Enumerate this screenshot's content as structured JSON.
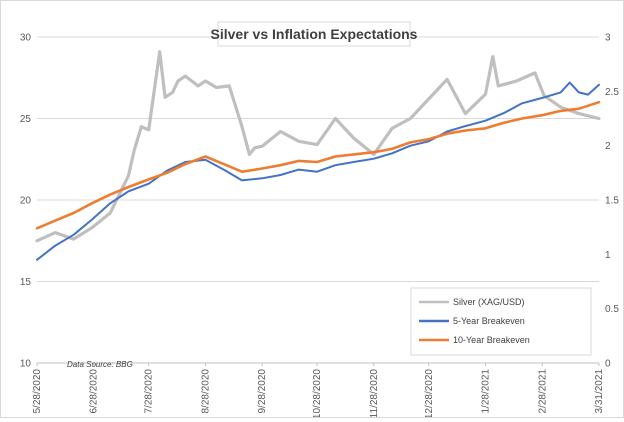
{
  "chart_data": {
    "type": "line",
    "title": "Silver vs Inflation Expectations",
    "source": "Data Source: BBG",
    "x_ticks": [
      "5/28/2020",
      "6/28/2020",
      "7/28/2020",
      "8/28/2020",
      "9/28/2020",
      "10/28/2020",
      "11/28/2020",
      "12/28/2020",
      "1/28/2021",
      "2/28/2021",
      "3/31/2021"
    ],
    "y_left": {
      "min": 10,
      "max": 30,
      "ticks": [
        "10",
        "15",
        "20",
        "25",
        "30"
      ]
    },
    "y_right": {
      "min": 0,
      "max": 3,
      "ticks": [
        "0",
        "0.5",
        "1",
        "1.5",
        "2",
        "2.5",
        "3"
      ]
    },
    "series": [
      {
        "name": "Silver (XAG/USD)",
        "axis": "left",
        "color": "#bfbfbf",
        "x": [
          "5/28/2020",
          "6/7/2020",
          "6/17/2020",
          "6/27/2020",
          "7/7/2020",
          "7/17/2020",
          "7/20/2020",
          "7/24/2020",
          "7/28/2020",
          "8/3/2020",
          "8/6/2020",
          "8/10/2020",
          "8/13/2020",
          "8/17/2020",
          "8/24/2020",
          "8/28/2020",
          "9/3/2020",
          "9/10/2020",
          "9/17/2020",
          "9/21/2020",
          "9/24/2020",
          "9/28/2020",
          "10/8/2020",
          "10/18/2020",
          "10/28/2020",
          "11/7/2020",
          "11/17/2020",
          "11/28/2020",
          "12/8/2020",
          "12/18/2020",
          "12/28/2020",
          "1/7/2021",
          "1/17/2021",
          "1/28/2021",
          "2/1/2021",
          "2/4/2021",
          "2/14/2021",
          "2/24/2021",
          "3/1/2021",
          "3/10/2021",
          "3/20/2021",
          "3/31/2021"
        ],
        "values": [
          17.5,
          18.0,
          17.6,
          18.3,
          19.2,
          21.5,
          23.0,
          24.5,
          24.3,
          29.1,
          26.3,
          26.6,
          27.3,
          27.6,
          27.0,
          27.3,
          26.9,
          27.0,
          24.5,
          22.8,
          23.2,
          23.3,
          24.2,
          23.6,
          23.4,
          25.0,
          23.8,
          22.8,
          24.4,
          25.0,
          26.2,
          27.4,
          25.3,
          26.5,
          28.8,
          27.0,
          27.3,
          27.8,
          26.4,
          25.7,
          25.3,
          25.0
        ]
      },
      {
        "name": "5-Year Breakeven",
        "axis": "right",
        "color": "#4472c4",
        "x": [
          "5/28/2020",
          "6/7/2020",
          "6/17/2020",
          "6/27/2020",
          "7/7/2020",
          "7/17/2020",
          "7/28/2020",
          "8/7/2020",
          "8/17/2020",
          "8/28/2020",
          "9/7/2020",
          "9/17/2020",
          "9/28/2020",
          "10/8/2020",
          "10/18/2020",
          "10/28/2020",
          "11/7/2020",
          "11/17/2020",
          "11/28/2020",
          "12/8/2020",
          "12/18/2020",
          "12/28/2020",
          "1/7/2021",
          "1/17/2021",
          "1/28/2021",
          "2/7/2021",
          "2/17/2021",
          "2/28/2021",
          "3/10/2021",
          "3/15/2021",
          "3/20/2021",
          "3/25/2021",
          "3/31/2021"
        ],
        "values": [
          0.95,
          1.08,
          1.18,
          1.32,
          1.47,
          1.58,
          1.65,
          1.77,
          1.85,
          1.87,
          1.78,
          1.68,
          1.7,
          1.73,
          1.78,
          1.76,
          1.82,
          1.85,
          1.88,
          1.93,
          2.0,
          2.04,
          2.13,
          2.18,
          2.23,
          2.3,
          2.39,
          2.44,
          2.49,
          2.58,
          2.49,
          2.47,
          2.56
        ]
      },
      {
        "name": "10-Year Breakeven",
        "axis": "right",
        "color": "#ed7d31",
        "x": [
          "5/28/2020",
          "6/7/2020",
          "6/17/2020",
          "6/27/2020",
          "7/7/2020",
          "7/17/2020",
          "7/28/2020",
          "8/7/2020",
          "8/17/2020",
          "8/28/2020",
          "9/7/2020",
          "9/17/2020",
          "9/28/2020",
          "10/8/2020",
          "10/18/2020",
          "10/28/2020",
          "11/7/2020",
          "11/17/2020",
          "11/28/2020",
          "12/8/2020",
          "12/18/2020",
          "12/28/2020",
          "1/7/2021",
          "1/17/2021",
          "1/28/2021",
          "2/7/2021",
          "2/17/2021",
          "2/28/2021",
          "3/10/2021",
          "3/20/2021",
          "3/31/2021"
        ],
        "values": [
          1.24,
          1.31,
          1.38,
          1.47,
          1.55,
          1.62,
          1.69,
          1.75,
          1.83,
          1.9,
          1.83,
          1.76,
          1.79,
          1.82,
          1.86,
          1.85,
          1.9,
          1.92,
          1.94,
          1.97,
          2.03,
          2.06,
          2.11,
          2.14,
          2.16,
          2.21,
          2.25,
          2.28,
          2.32,
          2.34,
          2.4
        ]
      }
    ],
    "legend": {
      "placement": "bottom-right"
    },
    "grid": {
      "horizontal": true,
      "vertical": false
    }
  }
}
